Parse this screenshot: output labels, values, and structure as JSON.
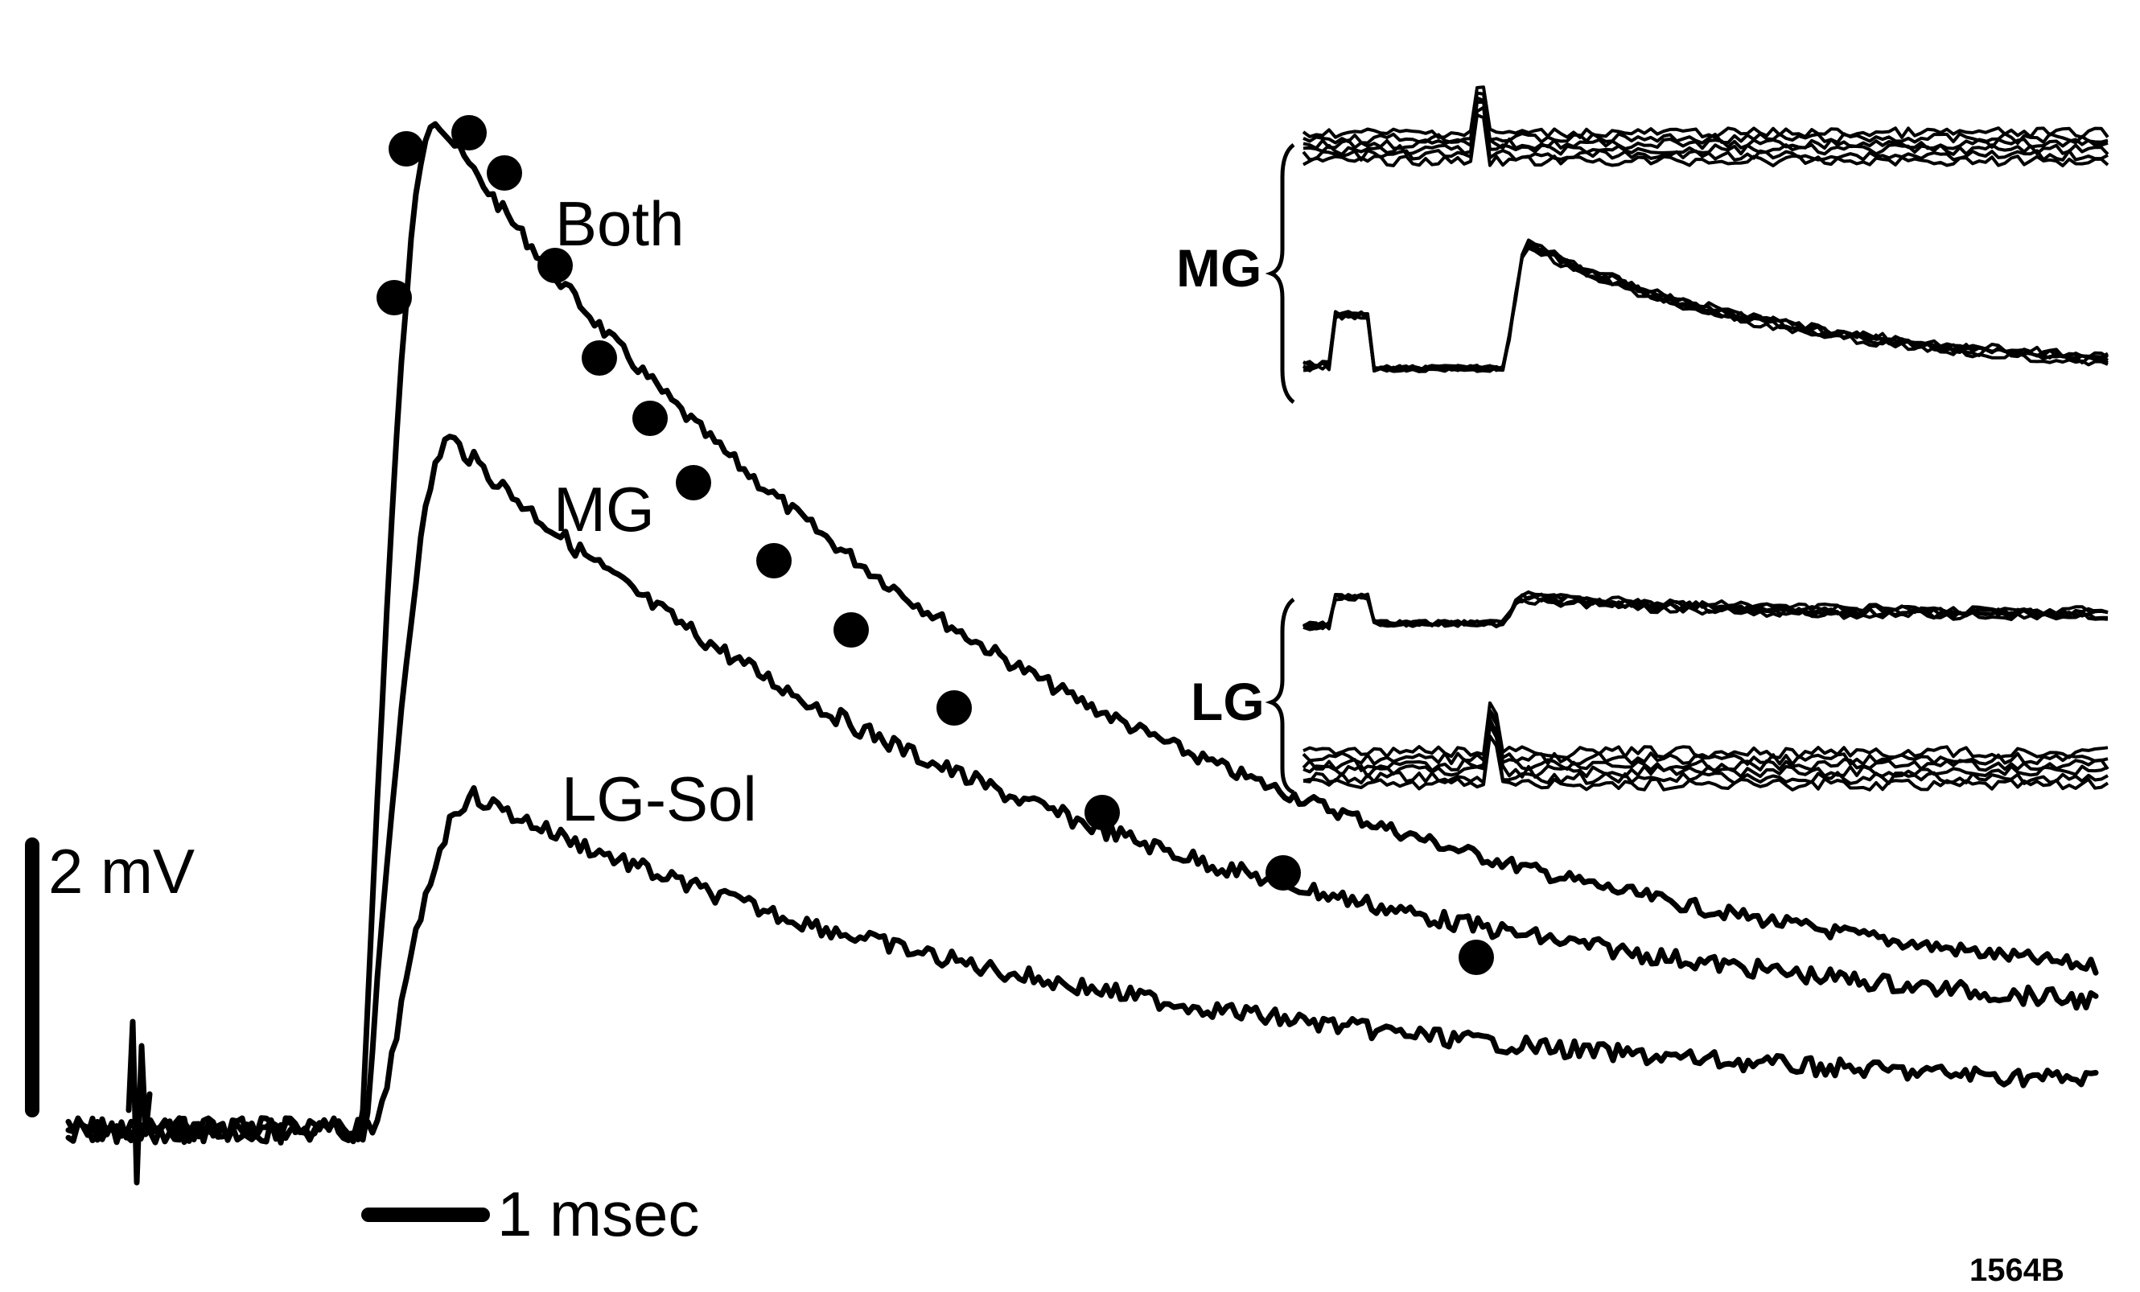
{
  "figure": {
    "trace_labels": {
      "both": "Both",
      "mg": "MG",
      "lg_sol": "LG-Sol"
    },
    "scale_bars": {
      "voltage": "2 mV",
      "time": "1 msec"
    },
    "inset_labels": {
      "mg": "MG",
      "lg": "LG"
    },
    "figure_id": "1564B",
    "ink_color": "#000000"
  }
}
